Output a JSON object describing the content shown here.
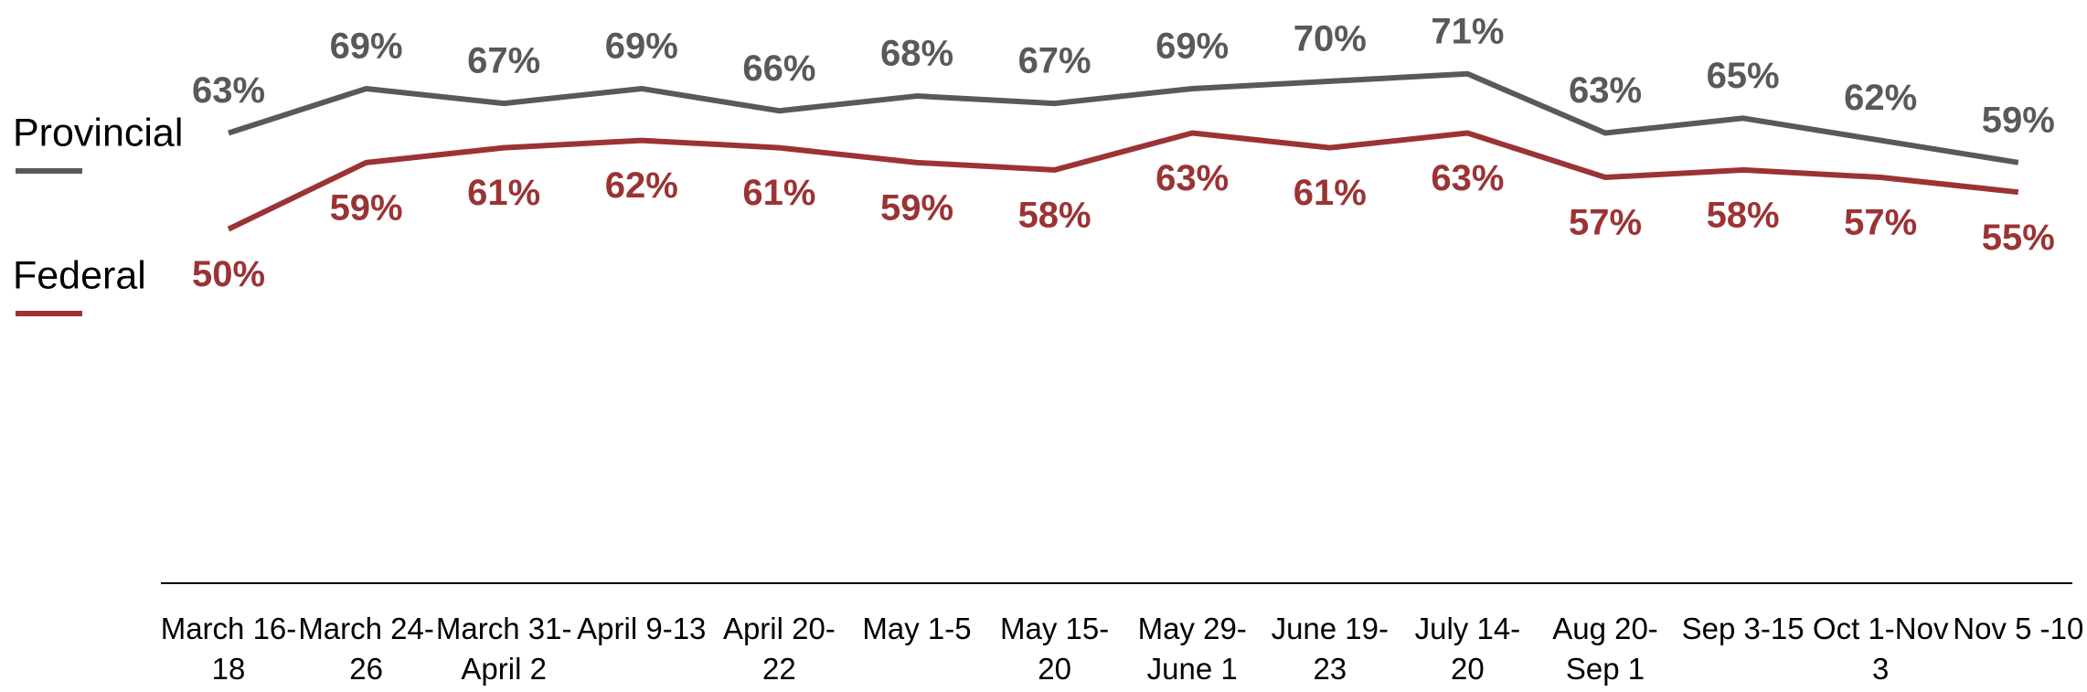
{
  "chart_data": {
    "type": "line",
    "categories": [
      "March 16-18",
      "March 24-26",
      "March 31-April 2",
      "April 9-13",
      "April 20-22",
      "May 1-5",
      "May 15-20",
      "May 29-June 1",
      "June 19-23",
      "July 14-20",
      "Aug 20-Sep 1",
      "Sep 3-15",
      "Oct 1-Nov 3",
      "Nov 5 -10"
    ],
    "series": [
      {
        "name": "Provincial",
        "color": "#595959",
        "values": [
          63,
          69,
          67,
          69,
          66,
          68,
          67,
          69,
          70,
          71,
          63,
          65,
          62,
          59
        ],
        "value_labels": [
          "63%",
          "69%",
          "67%",
          "69%",
          "66%",
          "68%",
          "67%",
          "69%",
          "70%",
          "71%",
          "63%",
          "65%",
          "62%",
          "59%"
        ]
      },
      {
        "name": "Federal",
        "color": "#9b3334",
        "values": [
          50,
          59,
          61,
          62,
          61,
          59,
          58,
          63,
          61,
          63,
          57,
          58,
          57,
          55
        ],
        "value_labels": [
          "50%",
          "59%",
          "61%",
          "62%",
          "61%",
          "59%",
          "58%",
          "63%",
          "61%",
          "63%",
          "57%",
          "58%",
          "57%",
          "55%"
        ]
      }
    ],
    "ylim": [
      0,
      80
    ]
  }
}
